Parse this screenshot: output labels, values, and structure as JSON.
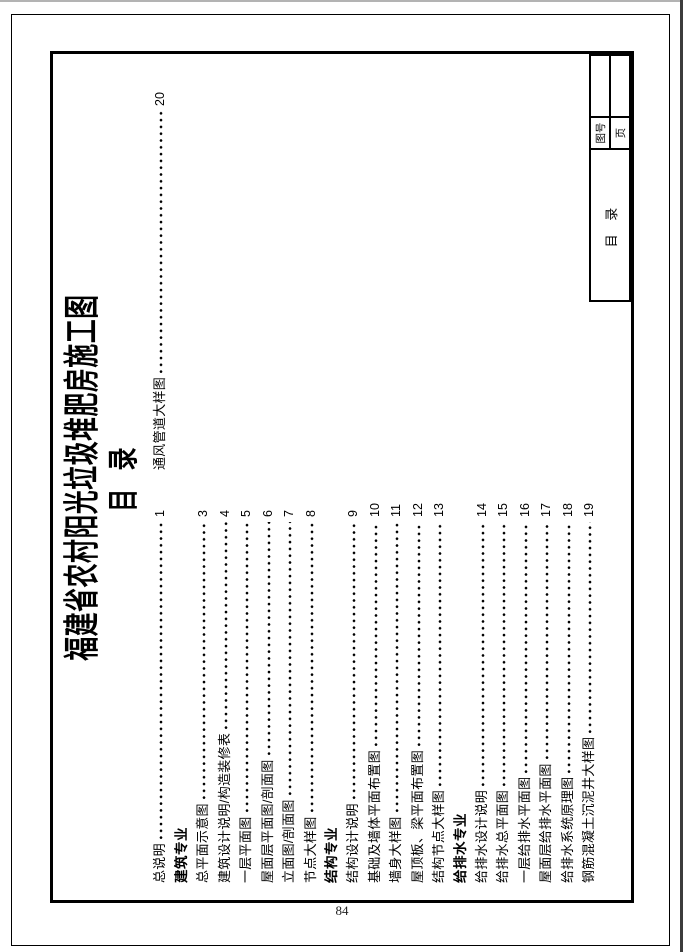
{
  "sheet": {
    "title": "福建省农村阳光垃圾堆肥房施工图",
    "heading": "目 录",
    "toc": {
      "left_column": [
        {
          "type": "entry",
          "text": "总说明",
          "page": "1"
        },
        {
          "type": "section",
          "text": "建筑专业"
        },
        {
          "type": "entry",
          "text": "总平面示意图",
          "page": "3"
        },
        {
          "type": "entry",
          "text": "建筑设计说明/构造装修表",
          "page": "4"
        },
        {
          "type": "entry",
          "text": "一层平面图",
          "page": "5"
        },
        {
          "type": "entry",
          "text": "屋面层平面图/剖面图",
          "page": "6"
        },
        {
          "type": "entry",
          "text": "立面图/剖面图",
          "page": "7"
        },
        {
          "type": "entry",
          "text": "节点大样图",
          "page": "8"
        },
        {
          "type": "section",
          "text": "结构专业"
        },
        {
          "type": "entry",
          "text": "结构设计说明",
          "page": "9"
        },
        {
          "type": "entry",
          "text": "基础及墙体平面布置图",
          "page": "10"
        },
        {
          "type": "entry",
          "text": "墙身大样图",
          "page": "11"
        },
        {
          "type": "entry",
          "text": "屋顶板、梁平面布置图",
          "page": "12"
        },
        {
          "type": "entry",
          "text": "结构节点大样图",
          "page": "13"
        },
        {
          "type": "section",
          "text": "给排水专业"
        },
        {
          "type": "entry",
          "text": "给排水设计说明",
          "page": "14"
        },
        {
          "type": "entry",
          "text": "给排水总平面图",
          "page": "15"
        },
        {
          "type": "entry",
          "text": "一层给排水平面图",
          "page": "16"
        },
        {
          "type": "entry",
          "text": "屋面层给排水平面图",
          "page": "17"
        },
        {
          "type": "entry",
          "text": "给排水系统原理图",
          "page": "18"
        },
        {
          "type": "entry",
          "text": "钢筋混凝土沉泥井大样图",
          "page": "19"
        }
      ],
      "right_column": [
        {
          "type": "entry",
          "text": "通风管道大样图",
          "page": "20"
        }
      ]
    },
    "title_block": {
      "name": "目 录",
      "label_drawing_no": "图号",
      "label_page": "页",
      "drawing_no_value": "",
      "page_value": ""
    }
  },
  "book": {
    "page_number": "84"
  },
  "colors": {
    "ink": "#000000",
    "paper": "#ffffff"
  }
}
